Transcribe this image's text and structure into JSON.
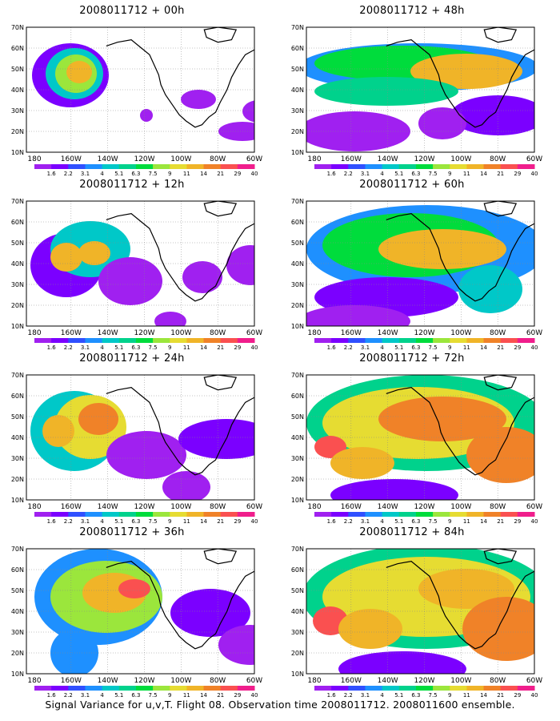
{
  "caption": "Signal Variance for u,v,T. Flight 08. Observation time 2008011712. 2008011600 ensemble.",
  "lat_labels": [
    "70N",
    "60N",
    "50N",
    "40N",
    "30N",
    "20N",
    "10N"
  ],
  "lon_labels": [
    "180",
    "160W",
    "140W",
    "120W",
    "100W",
    "80W",
    "60W"
  ],
  "colorbar_labels": [
    "1.6",
    "2.2",
    "3.1",
    "4",
    "5.1",
    "6.3",
    "7.5",
    "9",
    "11",
    "14",
    "21",
    "29",
    "40"
  ],
  "colorbar_colors": [
    "#a020f0",
    "#7b00ff",
    "#3050ff",
    "#1e90ff",
    "#00c8c8",
    "#00d28c",
    "#00dc3c",
    "#9be63c",
    "#e6dc32",
    "#f0b428",
    "#f08228",
    "#fa5050",
    "#f01e8c"
  ],
  "panels": [
    {
      "title": "2008011712 + 00h"
    },
    {
      "title": "2008011712 + 48h"
    },
    {
      "title": "2008011712 + 12h"
    },
    {
      "title": "2008011712 + 60h"
    },
    {
      "title": "2008011712 + 24h"
    },
    {
      "title": "2008011712 + 72h"
    },
    {
      "title": "2008011712 + 36h"
    },
    {
      "title": "2008011712 + 84h"
    }
  ]
}
